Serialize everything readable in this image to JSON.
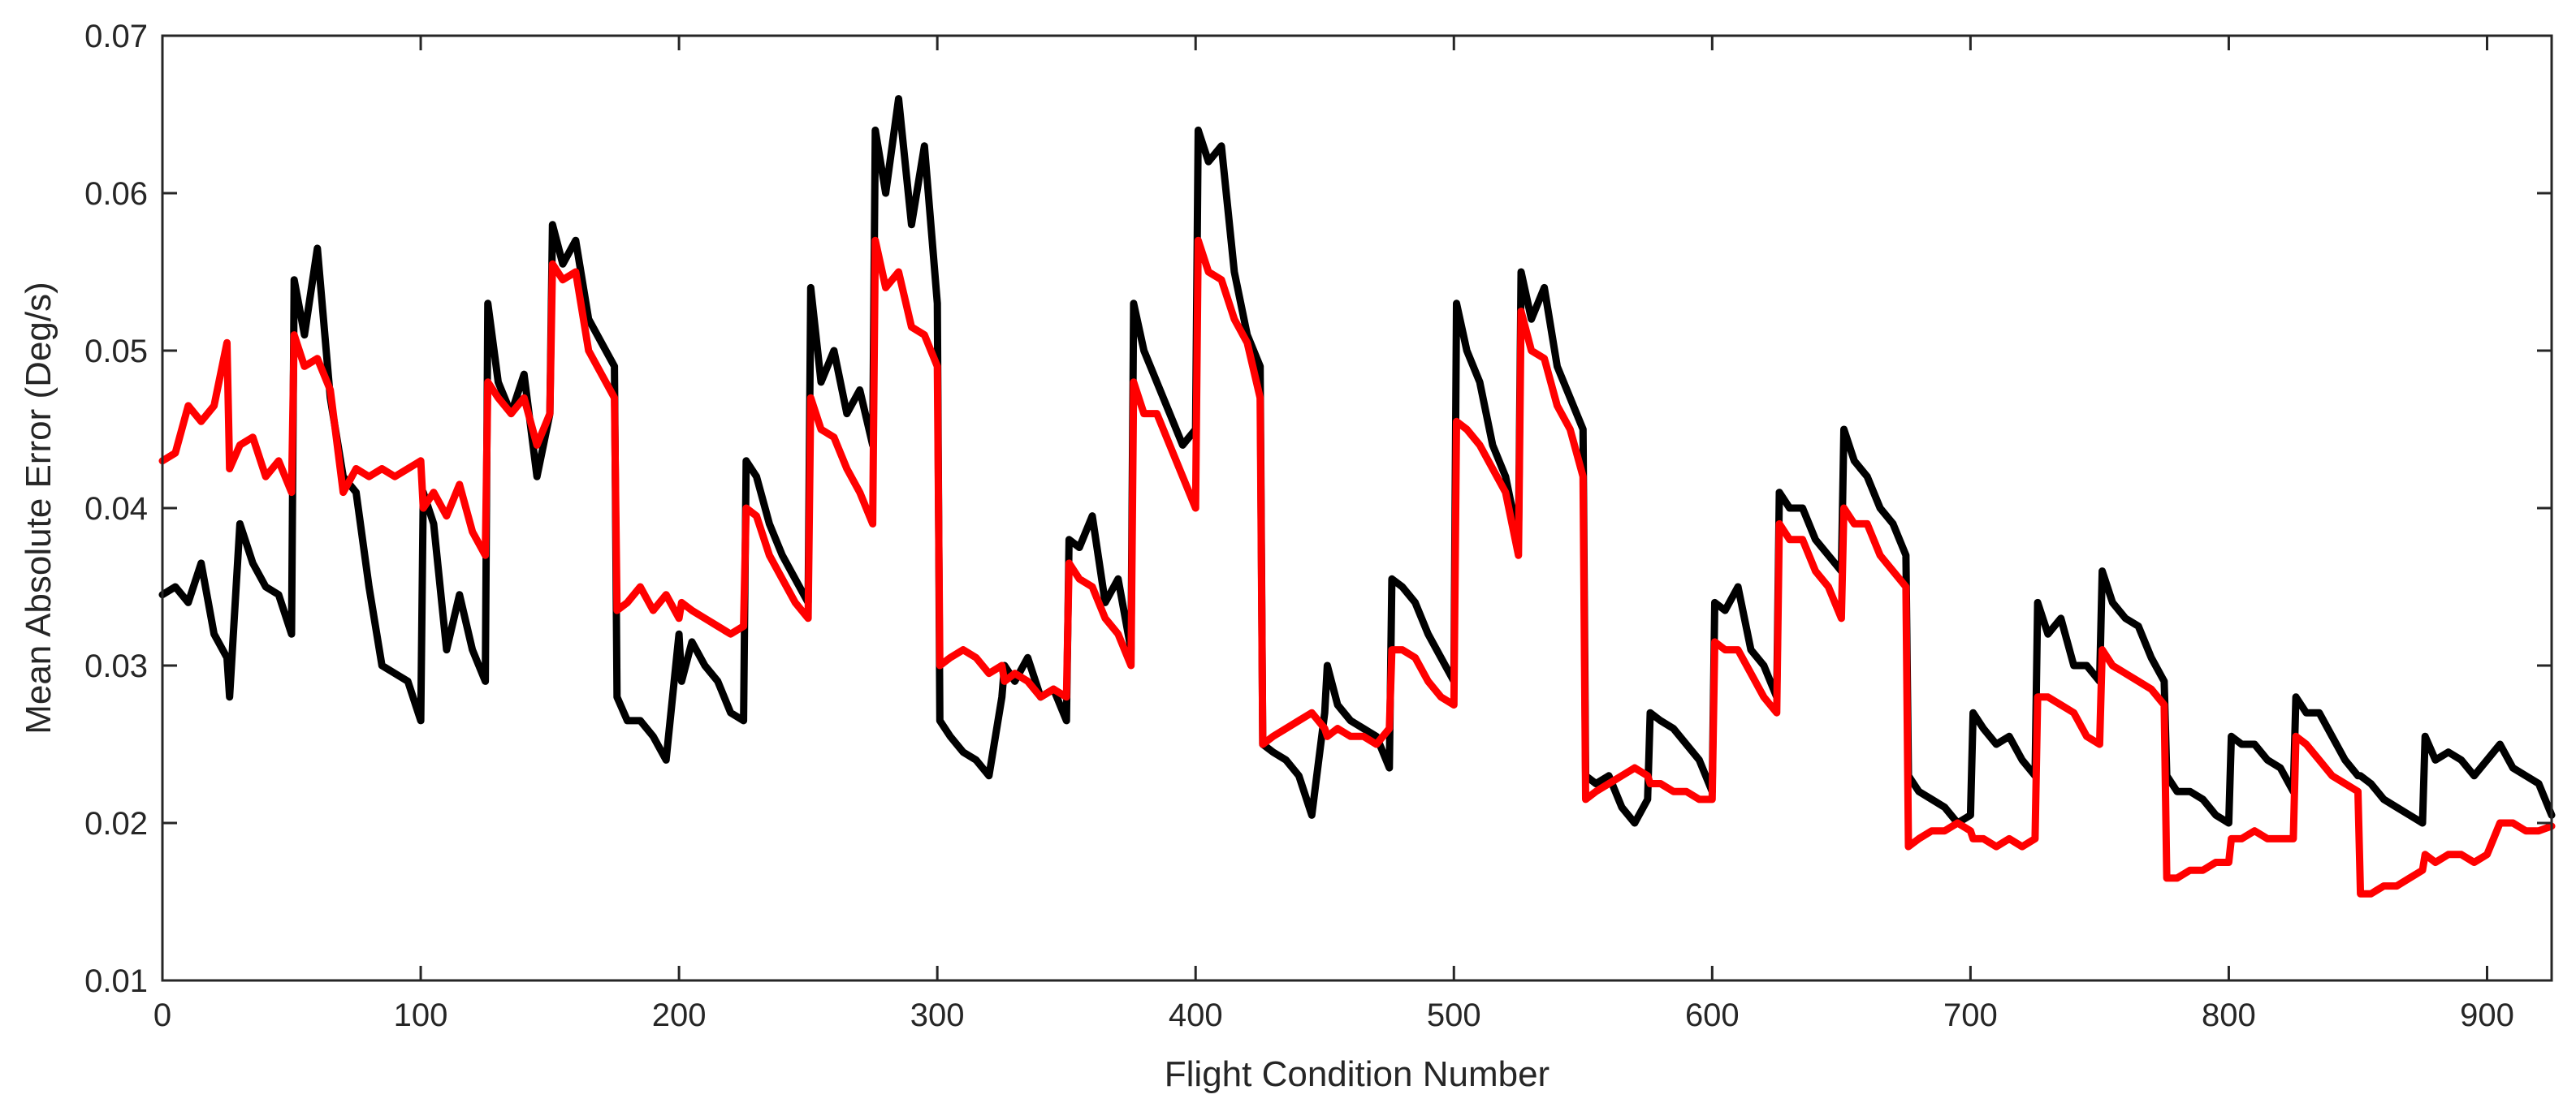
{
  "chart_data": {
    "type": "line",
    "title": "",
    "xlabel": "Flight Condition Number",
    "ylabel": "Mean Absolute Error (Deg/s)",
    "xlim": [
      0,
      925
    ],
    "ylim": [
      0.01,
      0.07
    ],
    "xticks": [
      0,
      100,
      200,
      300,
      400,
      500,
      600,
      700,
      800,
      900
    ],
    "xtick_labels": [
      "0",
      "100",
      "200",
      "300",
      "400",
      "500",
      "600",
      "700",
      "800",
      "900"
    ],
    "yticks": [
      0.01,
      0.02,
      0.03,
      0.04,
      0.05,
      0.06,
      0.07
    ],
    "ytick_labels": [
      "0.01",
      "0.02",
      "0.03",
      "0.04",
      "0.05",
      "0.06",
      "0.07"
    ],
    "grid": false,
    "legend": "none",
    "series": [
      {
        "color": "#000000",
        "x": [
          0,
          5,
          10,
          15,
          20,
          25,
          26,
          30,
          35,
          40,
          45,
          50,
          51,
          55,
          60,
          65,
          70,
          75,
          80,
          85,
          90,
          95,
          100,
          101,
          105,
          110,
          115,
          120,
          125,
          126,
          130,
          135,
          140,
          145,
          150,
          151,
          155,
          160,
          165,
          170,
          175,
          176,
          180,
          185,
          190,
          195,
          200,
          201,
          205,
          210,
          215,
          220,
          225,
          226,
          230,
          235,
          240,
          245,
          250,
          251,
          255,
          260,
          265,
          270,
          275,
          276,
          280,
          285,
          290,
          295,
          300,
          301,
          305,
          310,
          315,
          320,
          325,
          326,
          330,
          335,
          340,
          345,
          350,
          351,
          355,
          360,
          365,
          370,
          375,
          376,
          380,
          385,
          390,
          395,
          400,
          401,
          405,
          410,
          415,
          420,
          425,
          426,
          430,
          435,
          440,
          445,
          450,
          451,
          455,
          460,
          465,
          470,
          475,
          476,
          480,
          485,
          490,
          495,
          500,
          501,
          505,
          510,
          515,
          520,
          525,
          526,
          530,
          535,
          540,
          545,
          550,
          551,
          555,
          560,
          565,
          570,
          575,
          576,
          580,
          585,
          590,
          595,
          600,
          601,
          605,
          610,
          615,
          620,
          625,
          626,
          630,
          635,
          640,
          645,
          650,
          651,
          655,
          660,
          665,
          670,
          675,
          676,
          680,
          685,
          690,
          695,
          700,
          701,
          705,
          710,
          715,
          720,
          725,
          726,
          730,
          735,
          740,
          745,
          750,
          751,
          755,
          760,
          765,
          770,
          775,
          776,
          780,
          785,
          790,
          795,
          800,
          801,
          805,
          810,
          815,
          820,
          825,
          826,
          830,
          835,
          840,
          845,
          850,
          851,
          855,
          860,
          865,
          870,
          875,
          876,
          880,
          885,
          890,
          895,
          900,
          905,
          910,
          915,
          920,
          925
        ],
        "y": [
          0.0345,
          0.035,
          0.034,
          0.0365,
          0.032,
          0.0305,
          0.028,
          0.039,
          0.0365,
          0.035,
          0.0345,
          0.032,
          0.0545,
          0.051,
          0.0565,
          0.047,
          0.042,
          0.041,
          0.035,
          0.03,
          0.0295,
          0.029,
          0.0265,
          0.041,
          0.039,
          0.031,
          0.0345,
          0.031,
          0.029,
          0.053,
          0.048,
          0.046,
          0.0485,
          0.042,
          0.046,
          0.058,
          0.0555,
          0.057,
          0.052,
          0.0505,
          0.049,
          0.028,
          0.0265,
          0.0265,
          0.0255,
          0.024,
          0.032,
          0.029,
          0.0315,
          0.03,
          0.029,
          0.027,
          0.0265,
          0.043,
          0.042,
          0.039,
          0.037,
          0.0355,
          0.034,
          0.054,
          0.048,
          0.05,
          0.046,
          0.0475,
          0.044,
          0.064,
          0.06,
          0.066,
          0.058,
          0.063,
          0.053,
          0.0265,
          0.0255,
          0.0245,
          0.024,
          0.023,
          0.028,
          0.03,
          0.029,
          0.0305,
          0.028,
          0.0285,
          0.0265,
          0.038,
          0.0375,
          0.0395,
          0.034,
          0.0355,
          0.031,
          0.053,
          0.05,
          0.048,
          0.046,
          0.044,
          0.045,
          0.064,
          0.062,
          0.063,
          0.055,
          0.051,
          0.049,
          0.025,
          0.0245,
          0.024,
          0.023,
          0.0205,
          0.027,
          0.03,
          0.0275,
          0.0265,
          0.026,
          0.0255,
          0.0235,
          0.0355,
          0.035,
          0.034,
          0.032,
          0.0305,
          0.029,
          0.053,
          0.05,
          0.048,
          0.044,
          0.042,
          0.038,
          0.055,
          0.052,
          0.054,
          0.049,
          0.047,
          0.045,
          0.023,
          0.0225,
          0.023,
          0.021,
          0.02,
          0.0215,
          0.027,
          0.0265,
          0.026,
          0.025,
          0.024,
          0.022,
          0.034,
          0.0335,
          0.035,
          0.031,
          0.03,
          0.028,
          0.041,
          0.04,
          0.04,
          0.038,
          0.037,
          0.036,
          0.045,
          0.043,
          0.042,
          0.04,
          0.039,
          0.037,
          0.023,
          0.022,
          0.0215,
          0.021,
          0.02,
          0.0205,
          0.027,
          0.026,
          0.025,
          0.0255,
          0.024,
          0.023,
          0.034,
          0.032,
          0.033,
          0.03,
          0.03,
          0.029,
          0.036,
          0.034,
          0.033,
          0.0325,
          0.0305,
          0.029,
          0.023,
          0.022,
          0.022,
          0.0215,
          0.0205,
          0.02,
          0.0255,
          0.025,
          0.025,
          0.024,
          0.0235,
          0.022,
          0.028,
          0.027,
          0.027,
          0.0255,
          0.024,
          0.023,
          0.023,
          0.0225,
          0.0215,
          0.021,
          0.0205,
          0.02,
          0.0255,
          0.024,
          0.0245,
          0.024,
          0.023,
          0.024,
          0.025,
          0.0235,
          0.023,
          0.0225,
          0.0205
        ]
      },
      {
        "color": "#ff0000",
        "x": [
          0,
          5,
          10,
          15,
          20,
          25,
          26,
          30,
          35,
          40,
          45,
          50,
          51,
          55,
          60,
          65,
          70,
          75,
          80,
          85,
          90,
          95,
          100,
          101,
          105,
          110,
          115,
          120,
          125,
          126,
          130,
          135,
          140,
          145,
          150,
          151,
          155,
          160,
          165,
          170,
          175,
          176,
          180,
          185,
          190,
          195,
          200,
          201,
          205,
          210,
          215,
          220,
          225,
          226,
          230,
          235,
          240,
          245,
          250,
          251,
          255,
          260,
          265,
          270,
          275,
          276,
          280,
          285,
          290,
          295,
          300,
          301,
          305,
          310,
          315,
          320,
          325,
          326,
          330,
          335,
          340,
          345,
          350,
          351,
          355,
          360,
          365,
          370,
          375,
          376,
          380,
          385,
          390,
          395,
          400,
          401,
          405,
          410,
          415,
          420,
          425,
          426,
          430,
          435,
          440,
          445,
          450,
          451,
          455,
          460,
          465,
          470,
          475,
          476,
          480,
          485,
          490,
          495,
          500,
          501,
          505,
          510,
          515,
          520,
          525,
          526,
          530,
          535,
          540,
          545,
          550,
          551,
          555,
          560,
          565,
          570,
          575,
          576,
          580,
          585,
          590,
          595,
          600,
          601,
          605,
          610,
          615,
          620,
          625,
          626,
          630,
          635,
          640,
          645,
          650,
          651,
          655,
          660,
          665,
          670,
          675,
          676,
          680,
          685,
          690,
          695,
          700,
          701,
          705,
          710,
          715,
          720,
          725,
          726,
          730,
          735,
          740,
          745,
          750,
          751,
          755,
          760,
          765,
          770,
          775,
          776,
          780,
          785,
          790,
          795,
          800,
          801,
          805,
          810,
          815,
          820,
          825,
          826,
          830,
          835,
          840,
          845,
          850,
          851,
          855,
          860,
          865,
          870,
          875,
          876,
          880,
          885,
          890,
          895,
          900,
          905,
          910,
          915,
          920,
          925
        ],
        "y": [
          0.043,
          0.0435,
          0.0465,
          0.0455,
          0.0465,
          0.0505,
          0.0425,
          0.044,
          0.0445,
          0.042,
          0.043,
          0.041,
          0.051,
          0.049,
          0.0495,
          0.0475,
          0.041,
          0.0425,
          0.042,
          0.0425,
          0.042,
          0.0425,
          0.043,
          0.04,
          0.041,
          0.0395,
          0.0415,
          0.0385,
          0.037,
          0.048,
          0.047,
          0.046,
          0.047,
          0.044,
          0.046,
          0.0555,
          0.0545,
          0.055,
          0.05,
          0.0485,
          0.047,
          0.0335,
          0.034,
          0.035,
          0.0335,
          0.0345,
          0.033,
          0.034,
          0.0335,
          0.033,
          0.0325,
          0.032,
          0.0325,
          0.04,
          0.0395,
          0.037,
          0.0355,
          0.034,
          0.033,
          0.047,
          0.045,
          0.0445,
          0.0425,
          0.041,
          0.039,
          0.057,
          0.054,
          0.055,
          0.0515,
          0.051,
          0.049,
          0.03,
          0.0305,
          0.031,
          0.0305,
          0.0295,
          0.03,
          0.029,
          0.0295,
          0.029,
          0.028,
          0.0285,
          0.028,
          0.0365,
          0.0355,
          0.035,
          0.033,
          0.032,
          0.03,
          0.048,
          0.046,
          0.046,
          0.044,
          0.042,
          0.04,
          0.057,
          0.055,
          0.0545,
          0.052,
          0.0505,
          0.047,
          0.025,
          0.0255,
          0.026,
          0.0265,
          0.027,
          0.026,
          0.0255,
          0.026,
          0.0255,
          0.0255,
          0.025,
          0.026,
          0.031,
          0.031,
          0.0305,
          0.029,
          0.028,
          0.0275,
          0.0455,
          0.045,
          0.044,
          0.0425,
          0.041,
          0.037,
          0.0525,
          0.05,
          0.0495,
          0.0465,
          0.045,
          0.042,
          0.0215,
          0.022,
          0.0225,
          0.023,
          0.0235,
          0.023,
          0.0225,
          0.0225,
          0.022,
          0.022,
          0.0215,
          0.0215,
          0.0315,
          0.031,
          0.031,
          0.0295,
          0.028,
          0.027,
          0.039,
          0.038,
          0.038,
          0.036,
          0.035,
          0.033,
          0.04,
          0.039,
          0.039,
          0.037,
          0.036,
          0.035,
          0.0185,
          0.019,
          0.0195,
          0.0195,
          0.02,
          0.0195,
          0.019,
          0.019,
          0.0185,
          0.019,
          0.0185,
          0.019,
          0.028,
          0.028,
          0.0275,
          0.027,
          0.0255,
          0.025,
          0.031,
          0.03,
          0.0295,
          0.029,
          0.0285,
          0.0275,
          0.0165,
          0.0165,
          0.017,
          0.017,
          0.0175,
          0.0175,
          0.019,
          0.019,
          0.0195,
          0.019,
          0.019,
          0.019,
          0.0255,
          0.025,
          0.024,
          0.023,
          0.0225,
          0.022,
          0.0155,
          0.0155,
          0.016,
          0.016,
          0.0165,
          0.017,
          0.018,
          0.0175,
          0.018,
          0.018,
          0.0175,
          0.018,
          0.02,
          0.02,
          0.0195,
          0.0195,
          0.0198
        ]
      }
    ]
  }
}
